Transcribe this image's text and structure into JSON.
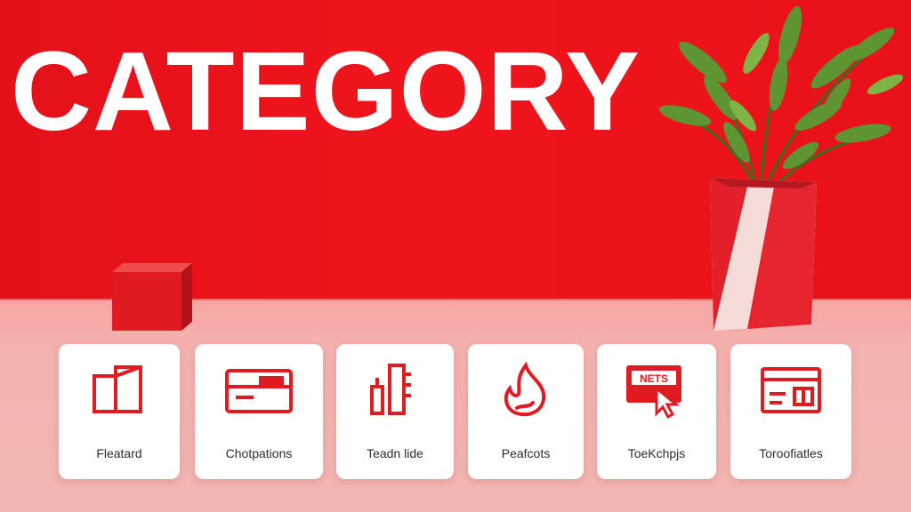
{
  "title": "CATEGORY",
  "colors": {
    "brand_red": "#e3131b",
    "card_bg": "#ffffff",
    "shelf": "#f4b0ad"
  },
  "cards": [
    {
      "label": "Fleatard",
      "icon": "panels-icon"
    },
    {
      "label": "Chotpations",
      "icon": "card-icon"
    },
    {
      "label": "Teadn lide",
      "icon": "bars-icon"
    },
    {
      "label": "Peafcots",
      "icon": "flame-icon"
    },
    {
      "label": "ToeKchpjs",
      "icon": "cursor-screen-icon"
    },
    {
      "label": "Toroofiatles",
      "icon": "browser-window-icon"
    }
  ],
  "card_icon_text": "NETS"
}
